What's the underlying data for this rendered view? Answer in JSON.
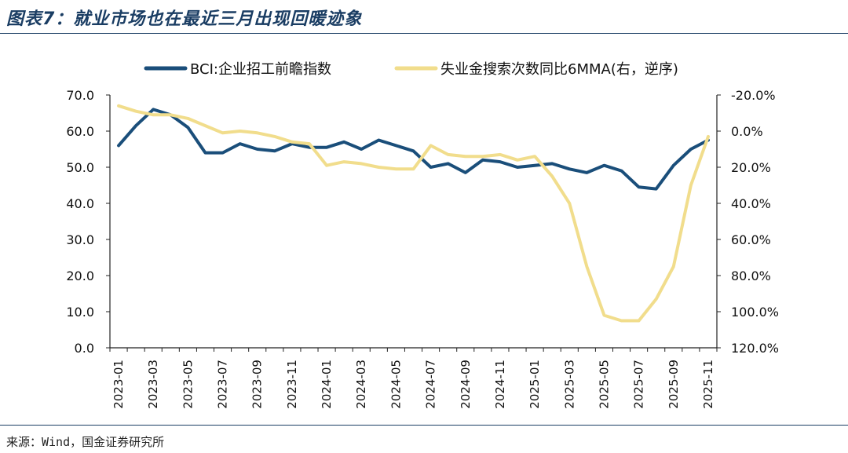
{
  "header": {
    "title": "图表7：就业市场也在最近三月出现回暖迹象"
  },
  "footer": {
    "source": "来源：Wind，国金证券研究所"
  },
  "chart_data": {
    "type": "line",
    "categories": [
      "2023-01",
      "2023-02",
      "2023-03",
      "2023-04",
      "2023-05",
      "2023-06",
      "2023-07",
      "2023-08",
      "2023-09",
      "2023-10",
      "2023-11",
      "2023-12",
      "2024-01",
      "2024-02",
      "2024-03",
      "2024-04",
      "2024-05",
      "2024-06",
      "2024-07",
      "2024-08",
      "2024-09",
      "2024-10",
      "2024-11",
      "2024-12",
      "2025-01",
      "2025-02",
      "2025-03",
      "2025-04",
      "2025-05",
      "2025-06",
      "2025-07",
      "2025-08",
      "2025-09",
      "2025-10",
      "2025-11"
    ],
    "x_tick_labels": [
      "2023-01",
      "2023-03",
      "2023-05",
      "2023-07",
      "2023-09",
      "2023-11",
      "2024-01",
      "2024-03",
      "2024-05",
      "2024-07",
      "2024-09",
      "2024-11",
      "2025-01",
      "2025-03",
      "2025-05",
      "2025-07",
      "2025-09",
      "2025-11"
    ],
    "left_axis": {
      "min": 0,
      "max": 70,
      "step": 10,
      "tick_labels": [
        "0.0",
        "10.0",
        "20.0",
        "30.0",
        "40.0",
        "50.0",
        "60.0",
        "70.0"
      ]
    },
    "right_axis": {
      "min": -20,
      "max": 120,
      "step": 20,
      "reversed": true,
      "tick_labels": [
        "-20.0%",
        "0.0%",
        "20.0%",
        "40.0%",
        "60.0%",
        "80.0%",
        "100.0%",
        "120.0%"
      ]
    },
    "series": [
      {
        "name": "BCI:企业招工前瞻指数",
        "axis": "left",
        "color": "#1a4e7a",
        "values": [
          56.0,
          61.5,
          66.0,
          64.5,
          61.0,
          54.0,
          54.0,
          56.5,
          55.0,
          54.5,
          56.5,
          55.5,
          55.5,
          57.0,
          55.0,
          57.5,
          56.0,
          54.5,
          50.0,
          51.0,
          48.5,
          52.0,
          51.5,
          50.0,
          50.5,
          51.0,
          49.5,
          48.5,
          50.5,
          49.0,
          44.5,
          44.0,
          50.5,
          55.0,
          57.5
        ]
      },
      {
        "name": "失业金搜索次数同比6MMA(右，逆序)",
        "axis": "right",
        "color": "#f1dd8c",
        "values": [
          -14,
          -11,
          -9,
          -9,
          -7,
          -3,
          1,
          0,
          1,
          3,
          6,
          7,
          19,
          17,
          18,
          20,
          21,
          21,
          8,
          13,
          14,
          14,
          13,
          16,
          14,
          25,
          40,
          75,
          102,
          105,
          105,
          93,
          75,
          30,
          3
        ]
      }
    ]
  }
}
